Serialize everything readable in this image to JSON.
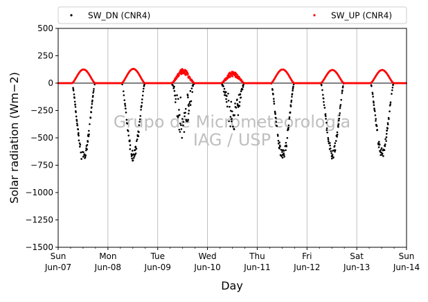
{
  "chart_data": {
    "type": "scatter",
    "title": "",
    "xlabel": "Day",
    "ylabel": "Solar radiation (Wm−2)",
    "ylim": [
      -1500,
      500
    ],
    "yticks": [
      500,
      250,
      0,
      -250,
      -500,
      -750,
      -1000,
      -1250,
      -1500
    ],
    "xlim": [
      "2015-06-07",
      "2015-06-14"
    ],
    "xtick_labels": [
      {
        "line1": "Sun",
        "line2": "Jun-07"
      },
      {
        "line1": "Mon",
        "line2": "Jun-08"
      },
      {
        "line1": "Tue",
        "line2": "Jun-09"
      },
      {
        "line1": "Wed",
        "line2": "Jun-10"
      },
      {
        "line1": "Thu",
        "line2": "Jun-11"
      },
      {
        "line1": "Fri",
        "line2": "Jun-12"
      },
      {
        "line1": "Sat",
        "line2": "Jun-13"
      },
      {
        "line1": "Sun",
        "line2": "Jun-14"
      }
    ],
    "grid": "vertical",
    "zero_line": true,
    "legend_position": "top",
    "watermark": [
      "Grupo de Micrometeorologia",
      "IAG / USP"
    ],
    "series": [
      {
        "name": "SW_DN (CNR4)",
        "color": "#000000",
        "marker": "point",
        "daily_peaks": [
          -700,
          -680,
          -550,
          -450,
          -680,
          -660,
          -650
        ]
      },
      {
        "name": "SW_UP (CNR4)",
        "color": "#ff0000",
        "marker": "point",
        "daily_peaks": [
          125,
          130,
          120,
          100,
          125,
          120,
          120
        ]
      }
    ]
  }
}
